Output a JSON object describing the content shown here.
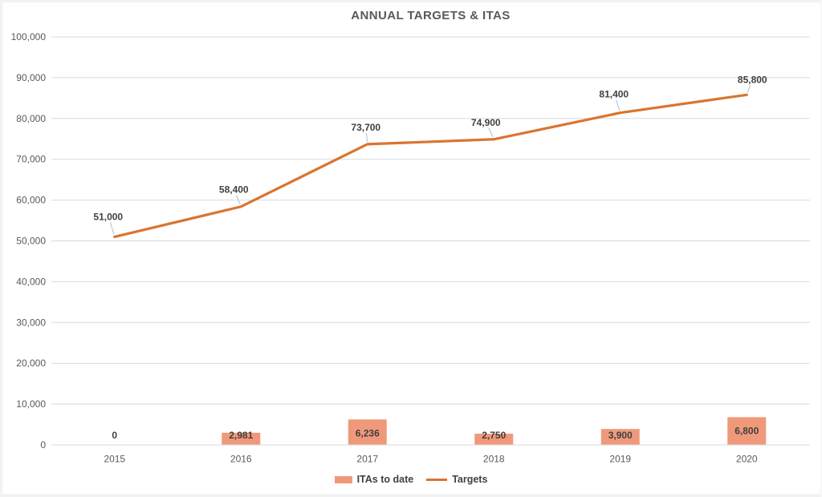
{
  "title": "ANNUAL TARGETS & ITAS",
  "chart_data": {
    "type": "combo",
    "title": "ANNUAL TARGETS & ITAS",
    "categories": [
      "2015",
      "2016",
      "2017",
      "2018",
      "2019",
      "2020"
    ],
    "series": [
      {
        "name": "ITAs to date",
        "type": "bar",
        "color": "#F0997A",
        "values": [
          0,
          2981,
          6236,
          2750,
          3900,
          6800
        ],
        "labels": [
          "0",
          "2,981",
          "6,236",
          "2,750",
          "3,900",
          "6,800"
        ]
      },
      {
        "name": "Targets",
        "type": "line",
        "color": "#D9752F",
        "values": [
          51000,
          58400,
          73700,
          74900,
          81400,
          85800
        ],
        "labels": [
          "51,000",
          "58,400",
          "73,700",
          "74,900",
          "81,400",
          "85,800"
        ]
      }
    ],
    "ylim": [
      0,
      100000
    ],
    "ytick_step": 10000,
    "ytick_labels": [
      "0",
      "10,000",
      "20,000",
      "30,000",
      "40,000",
      "50,000",
      "60,000",
      "70,000",
      "80,000",
      "90,000",
      "100,000"
    ],
    "grid": true,
    "data_labels": true,
    "legend_position": "bottom"
  },
  "colors": {
    "bar": "#F0997A",
    "line": "#D9752F",
    "grid": "#D9D9D9",
    "axis_line": "#D9D9D9",
    "axis_text": "#595959",
    "label_text": "#404040",
    "title_text": "#595959",
    "leader_line": "#A9BFD3",
    "background": "#FFFFFF"
  }
}
